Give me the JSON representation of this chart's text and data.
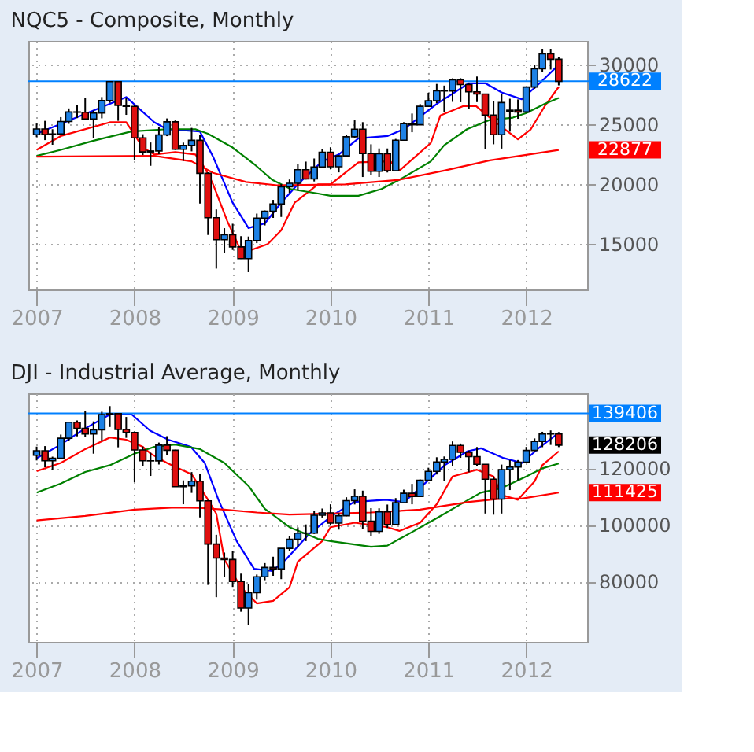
{
  "chart_data": [
    {
      "type": "candlestick",
      "title": "NQC5 - Composite, Monthly",
      "x": [
        "2007-01",
        "2007-02",
        "2007-03",
        "2007-04",
        "2007-05",
        "2007-06",
        "2007-07",
        "2007-08",
        "2007-09",
        "2007-10",
        "2007-11",
        "2007-12",
        "2008-01",
        "2008-02",
        "2008-03",
        "2008-04",
        "2008-05",
        "2008-06",
        "2008-07",
        "2008-08",
        "2008-09",
        "2008-10",
        "2008-11",
        "2008-12",
        "2009-01",
        "2009-02",
        "2009-03",
        "2009-04",
        "2009-05",
        "2009-06",
        "2009-07",
        "2009-08",
        "2009-09",
        "2009-10",
        "2009-11",
        "2009-12",
        "2010-01",
        "2010-02",
        "2010-03",
        "2010-04",
        "2010-05",
        "2010-06",
        "2010-07",
        "2010-08",
        "2010-09",
        "2010-10",
        "2010-11",
        "2010-12",
        "2011-01",
        "2011-02",
        "2011-03",
        "2011-04",
        "2011-05",
        "2011-06",
        "2011-07",
        "2011-08",
        "2011-09",
        "2011-10",
        "2011-11",
        "2011-12",
        "2012-01",
        "2012-02",
        "2012-03",
        "2012-04",
        "2012-05"
      ],
      "ohlc": [
        [
          24150,
          25080,
          23950,
          24630
        ],
        [
          24630,
          25310,
          23700,
          24160
        ],
        [
          24160,
          24610,
          23310,
          24220
        ],
        [
          24220,
          25620,
          24130,
          25250
        ],
        [
          25250,
          26350,
          25060,
          26050
        ],
        [
          26050,
          26650,
          25540,
          26030
        ],
        [
          26030,
          27240,
          25460,
          25460
        ],
        [
          25460,
          26170,
          23870,
          25960
        ],
        [
          25960,
          27300,
          25520,
          27010
        ],
        [
          27010,
          28610,
          26820,
          28590
        ],
        [
          28590,
          28590,
          25310,
          26610
        ],
        [
          26610,
          27260,
          25810,
          26520
        ],
        [
          26520,
          26610,
          22020,
          23890
        ],
        [
          23890,
          24190,
          22450,
          22710
        ],
        [
          22710,
          23500,
          21550,
          22790
        ],
        [
          22790,
          24810,
          22520,
          24130
        ],
        [
          24130,
          25510,
          24030,
          25230
        ],
        [
          25230,
          25340,
          22880,
          22930
        ],
        [
          22930,
          23490,
          21960,
          23260
        ],
        [
          23260,
          24720,
          22760,
          23680
        ],
        [
          23680,
          24120,
          18390,
          20920
        ],
        [
          20920,
          21000,
          15760,
          17210
        ],
        [
          17210,
          17900,
          12950,
          15360
        ],
        [
          15360,
          16330,
          14280,
          15770
        ],
        [
          15770,
          16700,
          14510,
          14760
        ],
        [
          14760,
          15660,
          13760,
          13780
        ],
        [
          13780,
          15630,
          12650,
          15290
        ],
        [
          15290,
          17550,
          15080,
          17170
        ],
        [
          17170,
          17810,
          16560,
          17740
        ],
        [
          17740,
          18700,
          17190,
          18350
        ],
        [
          18350,
          20020,
          17270,
          19790
        ],
        [
          19790,
          20400,
          19280,
          20090
        ],
        [
          20090,
          21680,
          19470,
          21220
        ],
        [
          21220,
          21900,
          20400,
          20450
        ],
        [
          20450,
          22160,
          20240,
          21450
        ],
        [
          21450,
          22950,
          21450,
          22690
        ],
        [
          22690,
          23100,
          21250,
          21470
        ],
        [
          21470,
          22450,
          21000,
          22380
        ],
        [
          22380,
          24150,
          22370,
          23980
        ],
        [
          23980,
          25350,
          23900,
          24610
        ],
        [
          24610,
          25200,
          20610,
          22570
        ],
        [
          22570,
          23350,
          20800,
          21090
        ],
        [
          21090,
          23000,
          20610,
          22550
        ],
        [
          22550,
          23000,
          20990,
          21140
        ],
        [
          21140,
          23800,
          21140,
          23690
        ],
        [
          23690,
          25200,
          23690,
          25070
        ],
        [
          25070,
          25920,
          24360,
          24980
        ],
        [
          24980,
          26710,
          24980,
          26530
        ],
        [
          26530,
          27660,
          26520,
          27000
        ],
        [
          27000,
          28400,
          26800,
          27820
        ],
        [
          27820,
          28260,
          26030,
          27810
        ],
        [
          27810,
          28870,
          26900,
          28740
        ],
        [
          28740,
          28880,
          26870,
          28350
        ],
        [
          28350,
          28450,
          26290,
          27740
        ],
        [
          27740,
          29020,
          26880,
          27560
        ],
        [
          27560,
          27570,
          22980,
          25790
        ],
        [
          25790,
          26970,
          23350,
          24150
        ],
        [
          24150,
          27540,
          22990,
          26840
        ],
        [
          26100,
          27160,
          24410,
          26200
        ],
        [
          26200,
          27100,
          25480,
          26050
        ],
        [
          26050,
          28180,
          25990,
          28140
        ],
        [
          28140,
          30010,
          28000,
          29670
        ],
        [
          29670,
          31340,
          29410,
          30910
        ],
        [
          30910,
          31340,
          29600,
          30460
        ],
        [
          30460,
          30640,
          28280,
          28620
        ]
      ],
      "colors": [
        "#1e82e6",
        "#e01010",
        "#1e82e6",
        "#1e82e6",
        "#1e82e6",
        "#e01010",
        "#e01010",
        "#1e82e6",
        "#1e82e6",
        "#1e82e6",
        "#e01010",
        "#e01010",
        "#e01010",
        "#e01010",
        "#1e82e6",
        "#1e82e6",
        "#1e82e6",
        "#e01010",
        "#1e82e6",
        "#1e82e6",
        "#e01010",
        "#e01010",
        "#e01010",
        "#1e82e6",
        "#e01010",
        "#e01010",
        "#1e82e6",
        "#1e82e6",
        "#1e82e6",
        "#1e82e6",
        "#1e82e6",
        "#1e82e6",
        "#1e82e6",
        "#e01010",
        "#1e82e6",
        "#1e82e6",
        "#e01010",
        "#1e82e6",
        "#1e82e6",
        "#1e82e6",
        "#e01010",
        "#e01010",
        "#1e82e6",
        "#e01010",
        "#1e82e6",
        "#1e82e6",
        "#e01010",
        "#1e82e6",
        "#1e82e6",
        "#1e82e6",
        "#e01010",
        "#1e82e6",
        "#e01010",
        "#e01010",
        "#e01010",
        "#e01010",
        "#e01010",
        "#1e82e6",
        "#1e82e6",
        "#e01010",
        "#1e82e6",
        "#1e82e6",
        "#1e82e6",
        "#e01010",
        "#e01010"
      ],
      "series": [
        {
          "type": "line",
          "color": "#0000ff",
          "x": [
            "2007-01",
            "2007-12",
            "2008-03-15",
            "2008-05",
            "2008-09",
            "2008-10-20",
            "2009-01",
            "2009-03",
            "2009-05",
            "2009-07",
            "2009-09",
            "2009-12",
            "2010-02",
            "2010-04-15",
            "2010-08",
            "2010-10",
            "2011-02",
            "2011-06",
            "2011-08",
            "2011-10",
            "2011-12-15",
            "2012-02-20",
            "2012-05"
          ],
          "values": [
            24230,
            27300,
            25190,
            24610,
            24420,
            22310,
            18460,
            16340,
            16730,
            18460,
            20000,
            21920,
            22500,
            23850,
            24040,
            24610,
            26730,
            28460,
            28460,
            27690,
            27120,
            28460,
            30000
          ]
        },
        {
          "type": "line",
          "color": "#ff0000",
          "x": [
            "2007-01",
            "2007-04",
            "2007-10",
            "2007-12",
            "2008-02",
            "2008-03-15",
            "2008-06",
            "2008-08-15",
            "2008-09-20",
            "2008-10-20",
            "2008-12-12",
            "2009-02",
            "2009-03",
            "2009-05-12",
            "2009-07",
            "2009-08-20",
            "2009-11-15",
            "2010-01",
            "2010-04-15",
            "2010-08-12",
            "2010-09-15",
            "2011-01-10",
            "2011-02-15",
            "2011-05-10",
            "2011-06-28",
            "2011-08-18",
            "2011-12",
            "2012-01-18",
            "2012-03-10",
            "2012-05"
          ],
          "values": [
            22880,
            24040,
            25190,
            25190,
            23080,
            22500,
            22690,
            22500,
            21340,
            20000,
            16920,
            14420,
            14420,
            15000,
            16150,
            18460,
            20000,
            20000,
            21840,
            21920,
            21150,
            23460,
            25770,
            26540,
            26540,
            25580,
            23770,
            24610,
            26540,
            28150
          ]
        },
        {
          "type": "line",
          "color": "#008000",
          "x": [
            "2007-01",
            "2007-04",
            "2007-08",
            "2007-12-20",
            "2008-05",
            "2008-08-15",
            "2008-10",
            "2009-01",
            "2009-03-20",
            "2009-05-28",
            "2009-08-05",
            "2009-11-15",
            "2010-01",
            "2010-04-15",
            "2010-07-10",
            "2010-09-15",
            "2011-01-10",
            "2011-03",
            "2011-05-25",
            "2011-08-18",
            "2011-11-12",
            "2012-01",
            "2012-03-10",
            "2012-05"
          ],
          "values": [
            22380,
            22880,
            23650,
            24420,
            24610,
            24610,
            24230,
            23080,
            21730,
            20380,
            19610,
            19230,
            19040,
            19040,
            19610,
            20380,
            21920,
            23270,
            24610,
            25380,
            25580,
            25960,
            26730,
            27230
          ]
        },
        {
          "type": "line",
          "color": "#ff0000",
          "x": [
            "2007-01",
            "2008-03-15",
            "2008-08",
            "2008-10-20",
            "2009-02-20",
            "2009-06-15",
            "2010-02-25",
            "2010-09-15",
            "2011-03",
            "2011-08-18",
            "2012-05"
          ],
          "values": [
            22310,
            22380,
            21920,
            20960,
            20190,
            19920,
            20000,
            20380,
            21150,
            22000,
            22877
          ]
        }
      ],
      "xlim": [
        "2006-12",
        "2012-08-15"
      ],
      "ylim": [
        11200,
        32000
      ],
      "xticks": [
        {
          "value": "2007-01",
          "label": "2007"
        },
        {
          "value": "2008-01",
          "label": "2008"
        },
        {
          "value": "2009-01",
          "label": "2009"
        },
        {
          "value": "2010-01",
          "label": "2010"
        },
        {
          "value": "2011-01",
          "label": "2011"
        },
        {
          "value": "2012-01",
          "label": "2012"
        }
      ],
      "yticks": [
        15000,
        20000,
        25000,
        30000
      ],
      "grid": true,
      "ref_lines": [
        {
          "axis": "y",
          "value": 28622,
          "label": "28622",
          "color": "#0080ff"
        }
      ],
      "annotations": [
        {
          "text": "22877",
          "x": "2012-05",
          "y": 22877
        }
      ]
    },
    {
      "type": "candlestick",
      "title": "DJI - Industrial Average, Monthly",
      "x": [
        "2007-01",
        "2007-02",
        "2007-03",
        "2007-04",
        "2007-05",
        "2007-06",
        "2007-07",
        "2007-08",
        "2007-09",
        "2007-10",
        "2007-11",
        "2007-12",
        "2008-01",
        "2008-02",
        "2008-03",
        "2008-04",
        "2008-05",
        "2008-06",
        "2008-07",
        "2008-08",
        "2008-09",
        "2008-10",
        "2008-11",
        "2008-12",
        "2009-01",
        "2009-02",
        "2009-03",
        "2009-04",
        "2009-05",
        "2009-06",
        "2009-07",
        "2009-08",
        "2009-09",
        "2009-10",
        "2009-11",
        "2009-12",
        "2010-01",
        "2010-02",
        "2010-03",
        "2010-04",
        "2010-05",
        "2010-06",
        "2010-07",
        "2010-08",
        "2010-09",
        "2010-10",
        "2010-11",
        "2010-12",
        "2011-01",
        "2011-02",
        "2011-03",
        "2011-04",
        "2011-05",
        "2011-06",
        "2011-07",
        "2011-08",
        "2011-09",
        "2011-10",
        "2011-11",
        "2011-12",
        "2012-01",
        "2012-02",
        "2012-03",
        "2012-04",
        "2012-05"
      ],
      "ohlc": [
        [
          124630,
          127670,
          122800,
          126220
        ],
        [
          126220,
          127860,
          120380,
          122680
        ],
        [
          122680,
          124120,
          119400,
          123540
        ],
        [
          123540,
          131920,
          123190,
          130630
        ],
        [
          130630,
          136280,
          129810,
          136280
        ],
        [
          136280,
          136920,
          131300,
          134090
        ],
        [
          134090,
          140210,
          131120,
          132120
        ],
        [
          132120,
          136600,
          125180,
          133580
        ],
        [
          133580,
          140000,
          129790,
          138960
        ],
        [
          138960,
          141980,
          134600,
          139300
        ],
        [
          139300,
          139300,
          127430,
          133720
        ],
        [
          133720,
          138140,
          130760,
          132650
        ],
        [
          132650,
          133040,
          115080,
          126500
        ],
        [
          126500,
          127680,
          120690,
          122660
        ],
        [
          122660,
          125530,
          117310,
          122630
        ],
        [
          122630,
          129110,
          121360,
          128200
        ],
        [
          128200,
          131360,
          124800,
          126380
        ],
        [
          126380,
          126570,
          113460,
          113500
        ],
        [
          113500,
          115740,
          107310,
          113780
        ],
        [
          113780,
          118680,
          111320,
          115440
        ],
        [
          115440,
          117900,
          102660,
          108510
        ],
        [
          108510,
          108830,
          78820,
          93250
        ],
        [
          93250,
          96530,
          74490,
          88290
        ],
        [
          88290,
          90260,
          81490,
          87760
        ],
        [
          87760,
          90880,
          78100,
          80010
        ],
        [
          80010,
          82800,
          69360,
          70630
        ],
        [
          70630,
          79240,
          64700,
          76090
        ],
        [
          76090,
          82490,
          73620,
          81680
        ],
        [
          81680,
          86520,
          80490,
          85000
        ],
        [
          85000,
          88770,
          82040,
          84470
        ],
        [
          84470,
          91720,
          80870,
          91720
        ],
        [
          91720,
          96160,
          90920,
          94960
        ],
        [
          94960,
          99170,
          92340,
          97120
        ],
        [
          97120,
          100190,
          94300,
          97130
        ],
        [
          97130,
          104960,
          96850,
          103450
        ],
        [
          103450,
          105800,
          102620,
          104280
        ],
        [
          104280,
          107290,
          99740,
          100670
        ],
        [
          100670,
          104150,
          98350,
          103250
        ],
        [
          103250,
          109780,
          103080,
          108570
        ],
        [
          108570,
          112580,
          107230,
          110090
        ],
        [
          110090,
          112110,
          98690,
          101370
        ],
        [
          101370,
          105940,
          96100,
          97740
        ],
        [
          97740,
          105880,
          96870,
          104660
        ],
        [
          104660,
          107200,
          98950,
          100150
        ],
        [
          100150,
          109480,
          100150,
          107880
        ],
        [
          107880,
          112450,
          107790,
          111180
        ],
        [
          111180,
          114510,
          107300,
          110060
        ],
        [
          110060,
          116040,
          110060,
          115780
        ],
        [
          115780,
          120200,
          115570,
          118920
        ],
        [
          118920,
          123910,
          117830,
          122260
        ],
        [
          122260,
          124190,
          115550,
          123200
        ],
        [
          123200,
          129500,
          120930,
          128110
        ],
        [
          128110,
          128760,
          123700,
          125700
        ],
        [
          125700,
          126310,
          118620,
          124140
        ],
        [
          124140,
          127530,
          120690,
          121430
        ],
        [
          121430,
          121430,
          104040,
          116140
        ],
        [
          116140,
          117160,
          103620,
          109130
        ],
        [
          109130,
          121330,
          104040,
          119550
        ],
        [
          119550,
          122900,
          112310,
          120460
        ],
        [
          120460,
          122930,
          115770,
          122180
        ],
        [
          122180,
          127560,
          122180,
          126330
        ],
        [
          126330,
          130560,
          126020,
          129520
        ],
        [
          129520,
          132900,
          127470,
          132120
        ],
        [
          132120,
          133380,
          128270,
          132140
        ],
        [
          132140,
          132790,
          127500,
          128206
        ]
      ],
      "colors": [
        "#1e82e6",
        "#e01010",
        "#1e82e6",
        "#1e82e6",
        "#1e82e6",
        "#e01010",
        "#e01010",
        "#1e82e6",
        "#1e82e6",
        "#1e82e6",
        "#e01010",
        "#e01010",
        "#e01010",
        "#e01010",
        "#e01010",
        "#1e82e6",
        "#e01010",
        "#e01010",
        "#1e82e6",
        "#1e82e6",
        "#e01010",
        "#e01010",
        "#e01010",
        "#e01010",
        "#e01010",
        "#e01010",
        "#1e82e6",
        "#1e82e6",
        "#1e82e6",
        "#e01010",
        "#1e82e6",
        "#1e82e6",
        "#1e82e6",
        "#1e82e6",
        "#1e82e6",
        "#1e82e6",
        "#e01010",
        "#1e82e6",
        "#1e82e6",
        "#1e82e6",
        "#e01010",
        "#e01010",
        "#1e82e6",
        "#e01010",
        "#1e82e6",
        "#1e82e6",
        "#e01010",
        "#1e82e6",
        "#1e82e6",
        "#1e82e6",
        "#1e82e6",
        "#1e82e6",
        "#e01010",
        "#e01010",
        "#e01010",
        "#e01010",
        "#e01010",
        "#1e82e6",
        "#1e82e6",
        "#1e82e6",
        "#1e82e6",
        "#1e82e6",
        "#1e82e6",
        "#1e82e6",
        "#e01010"
      ],
      "series": [
        {
          "type": "line",
          "color": "#0000ff",
          "x": [
            "2007-01",
            "2007-04",
            "2007-07",
            "2007-10",
            "2007-12-22",
            "2008-02-28",
            "2008-05-06",
            "2008-07-29",
            "2008-09-19",
            "2008-11-09",
            "2009-01-16",
            "2009-03-22",
            "2009-05-29",
            "2009-07-19",
            "2009-10-12",
            "2010-01-06",
            "2010-03-29",
            "2010-07-26",
            "2010-10-03",
            "2010-12-09",
            "2011-03-03",
            "2011-05-26",
            "2011-07-16",
            "2011-10-09",
            "2011-12-16",
            "2012-02-22",
            "2012-05"
          ],
          "values": [
            123600,
            128400,
            134100,
            139000,
            139000,
            133300,
            130100,
            127600,
            121900,
            108900,
            94300,
            84500,
            83700,
            87800,
            96700,
            103200,
            108100,
            108900,
            108100,
            113800,
            121100,
            126000,
            127100,
            123600,
            121900,
            127600,
            132500
          ]
        },
        {
          "type": "line",
          "color": "#ff0000",
          "x": [
            "2007-01",
            "2007-04",
            "2007-07",
            "2007-10",
            "2007-12",
            "2008-02",
            "2008-03",
            "2008-05",
            "2008-08",
            "2008-10",
            "2008-11",
            "2008-12",
            "2009-02",
            "2009-04",
            "2009-06",
            "2009-08",
            "2009-09",
            "2009-12",
            "2010-01",
            "2010-04",
            "2010-08",
            "2010-09-15",
            "2010-12",
            "2011-02",
            "2011-04",
            "2011-06",
            "2011-07",
            "2011-09",
            "2011-10",
            "2011-12",
            "2012-02",
            "2012-03",
            "2012-05"
          ],
          "values": [
            119000,
            121900,
            126800,
            130900,
            130100,
            127600,
            125200,
            121900,
            117900,
            108900,
            104000,
            87800,
            78000,
            72300,
            73200,
            78000,
            87000,
            94300,
            99200,
            100800,
            99200,
            97900,
            100800,
            107300,
            117100,
            118700,
            119500,
            117100,
            110600,
            108900,
            115400,
            121100,
            126000
          ]
        },
        {
          "type": "line",
          "color": "#008000",
          "x": [
            "2007-01",
            "2007-04",
            "2007-07",
            "2007-10",
            "2008-01",
            "2008-03-15",
            "2008-06",
            "2008-09",
            "2008-12",
            "2009-03",
            "2009-05",
            "2009-08",
            "2009-11-15",
            "2010-01",
            "2010-06",
            "2010-08",
            "2010-11",
            "2011-02",
            "2011-05",
            "2011-07-15",
            "2011-10",
            "2012-01",
            "2012-03",
            "2012-05"
          ],
          "values": [
            111400,
            114600,
            118700,
            121100,
            125200,
            127600,
            128400,
            126800,
            121900,
            113800,
            105700,
            99200,
            95100,
            94300,
            92300,
            92700,
            97500,
            102400,
            107300,
            111400,
            113000,
            117100,
            120000,
            121700
          ]
        },
        {
          "type": "line",
          "color": "#ff0000",
          "x": [
            "2007-01",
            "2007-07",
            "2008-01",
            "2008-06",
            "2008-09",
            "2008-12",
            "2009-04",
            "2009-08",
            "2010-01",
            "2010-06",
            "2010-12",
            "2011-06",
            "2011-10",
            "2011-12-15",
            "2012-05"
          ],
          "values": [
            101600,
            103200,
            105400,
            106200,
            106000,
            105400,
            104400,
            103700,
            104000,
            104400,
            105400,
            108100,
            109300,
            109300,
            111425
          ]
        }
      ],
      "xlim": [
        "2006-12",
        "2012-08-15"
      ],
      "ylim": [
        58700,
        146500
      ],
      "xticks": [
        {
          "value": "2007-01",
          "label": "2007"
        },
        {
          "value": "2008-01",
          "label": "2008"
        },
        {
          "value": "2009-01",
          "label": "2009"
        },
        {
          "value": "2010-01",
          "label": "2010"
        },
        {
          "value": "2011-01",
          "label": "2011"
        },
        {
          "value": "2012-01",
          "label": "2012"
        }
      ],
      "yticks": [
        80000,
        100000,
        120000
      ],
      "grid": true,
      "ref_lines": [
        {
          "axis": "y",
          "value": 139406,
          "label": "139406",
          "color": "#0080ff"
        }
      ],
      "annotations": [
        {
          "text": "128206",
          "x": "2012-05",
          "y": 128206
        },
        {
          "text": "111425",
          "x": "2012-05",
          "y": 111425
        }
      ]
    }
  ]
}
